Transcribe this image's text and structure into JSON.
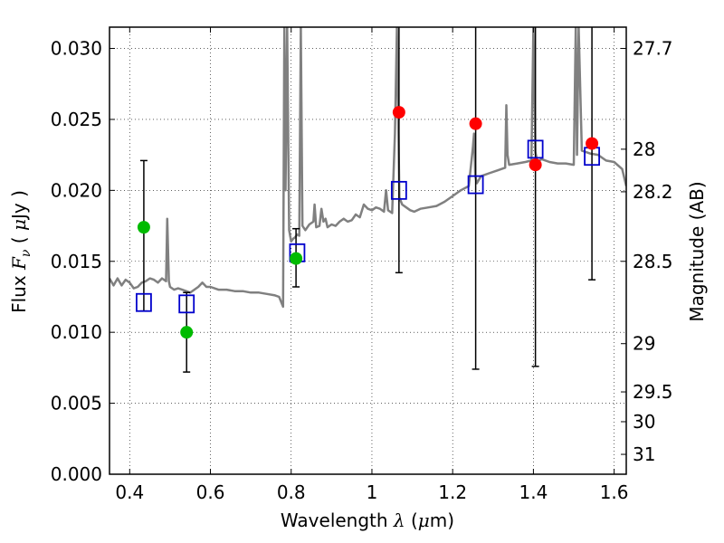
{
  "chart_data": {
    "type": "scatter",
    "title": "",
    "xlabel": {
      "prefix": "Wavelength  ",
      "symbol": "λ",
      "unit": " (",
      "unit_symbol": "μ",
      "unit_suffix": "m)"
    },
    "ylabel": {
      "prefix": "Flux  ",
      "symbol": "F",
      "subscript": "ν",
      "unit": "  ( ",
      "unit_symbol": "μ",
      "unit_suffix": "Jy )"
    },
    "y2label": "Magnitude (AB)",
    "xlim": [
      0.35,
      1.63
    ],
    "ylim": [
      0.0,
      0.0315
    ],
    "grid": true,
    "grid_style": "dotted",
    "x_ticks": [
      {
        "value": 0.4,
        "label": "0.4"
      },
      {
        "value": 0.6,
        "label": "0.6"
      },
      {
        "value": 0.8,
        "label": "0.8"
      },
      {
        "value": 1.0,
        "label": "1"
      },
      {
        "value": 1.2,
        "label": "1.2"
      },
      {
        "value": 1.4,
        "label": "1.4"
      },
      {
        "value": 1.6,
        "label": "1.6"
      }
    ],
    "y_ticks": [
      {
        "value": 0.0,
        "label": "0.000"
      },
      {
        "value": 0.005,
        "label": "0.005"
      },
      {
        "value": 0.01,
        "label": "0.010"
      },
      {
        "value": 0.015,
        "label": "0.015"
      },
      {
        "value": 0.02,
        "label": "0.020"
      },
      {
        "value": 0.025,
        "label": "0.025"
      },
      {
        "value": 0.03,
        "label": "0.030"
      }
    ],
    "y2_ticks": [
      {
        "flux": 0.03,
        "label": "27.7"
      },
      {
        "flux": 0.0229,
        "label": "28"
      },
      {
        "flux": 0.0199,
        "label": "28.2"
      },
      {
        "flux": 0.015,
        "label": "28.5"
      },
      {
        "flux": 0.0092,
        "label": "29"
      },
      {
        "flux": 0.0058,
        "label": "29.5"
      },
      {
        "flux": 0.0037,
        "label": "30"
      },
      {
        "flux": 0.0014,
        "label": "31"
      }
    ],
    "colors": {
      "spectrum": "#808080",
      "green_points": "#00bb00",
      "red_points": "#ff0000",
      "model_squares": "#0000cc",
      "errorbars": "#000000"
    },
    "spectrum": {
      "name": "",
      "x": [
        0.35,
        0.36,
        0.37,
        0.38,
        0.39,
        0.4,
        0.41,
        0.42,
        0.43,
        0.44,
        0.45,
        0.46,
        0.47,
        0.48,
        0.49,
        0.493,
        0.497,
        0.5,
        0.51,
        0.52,
        0.53,
        0.54,
        0.55,
        0.56,
        0.57,
        0.58,
        0.59,
        0.6,
        0.62,
        0.64,
        0.66,
        0.68,
        0.7,
        0.72,
        0.74,
        0.76,
        0.77,
        0.78,
        0.783,
        0.786,
        0.79,
        0.795,
        0.8,
        0.805,
        0.81,
        0.815,
        0.82,
        0.824,
        0.828,
        0.835,
        0.845,
        0.855,
        0.858,
        0.862,
        0.87,
        0.875,
        0.88,
        0.885,
        0.89,
        0.9,
        0.91,
        0.92,
        0.93,
        0.94,
        0.95,
        0.96,
        0.97,
        0.98,
        0.99,
        1.0,
        1.01,
        1.02,
        1.03,
        1.035,
        1.04,
        1.05,
        1.057,
        1.062,
        1.068,
        1.075,
        1.085,
        1.095,
        1.105,
        1.12,
        1.14,
        1.16,
        1.18,
        1.2,
        1.22,
        1.24,
        1.25,
        1.253,
        1.256,
        1.26,
        1.27,
        1.29,
        1.31,
        1.33,
        1.333,
        1.336,
        1.34,
        1.36,
        1.38,
        1.395,
        1.4,
        1.405,
        1.41,
        1.42,
        1.44,
        1.46,
        1.48,
        1.5,
        1.505,
        1.508,
        1.512,
        1.52,
        1.54,
        1.56,
        1.58,
        1.6,
        1.62,
        1.63
      ],
      "y": [
        0.0138,
        0.0133,
        0.0138,
        0.0133,
        0.0137,
        0.0135,
        0.0131,
        0.0132,
        0.0135,
        0.0136,
        0.0138,
        0.0137,
        0.0135,
        0.0138,
        0.0136,
        0.018,
        0.0136,
        0.0132,
        0.013,
        0.0131,
        0.013,
        0.0129,
        0.0128,
        0.013,
        0.0132,
        0.0135,
        0.0132,
        0.0132,
        0.013,
        0.013,
        0.0129,
        0.0129,
        0.0128,
        0.0128,
        0.0127,
        0.0126,
        0.0125,
        0.0118,
        0.0315,
        0.02,
        0.0315,
        0.0172,
        0.0164,
        0.0166,
        0.0167,
        0.0169,
        0.0168,
        0.0315,
        0.0175,
        0.0172,
        0.0176,
        0.0178,
        0.019,
        0.0174,
        0.0175,
        0.0187,
        0.0178,
        0.018,
        0.0174,
        0.0176,
        0.0175,
        0.0178,
        0.018,
        0.0178,
        0.0179,
        0.0183,
        0.0181,
        0.019,
        0.0187,
        0.0186,
        0.0188,
        0.0187,
        0.0185,
        0.02,
        0.0186,
        0.0184,
        0.024,
        0.0315,
        0.0195,
        0.019,
        0.0188,
        0.0186,
        0.0185,
        0.0187,
        0.0188,
        0.0189,
        0.0192,
        0.0196,
        0.02,
        0.0203,
        0.023,
        0.024,
        0.021,
        0.0205,
        0.021,
        0.0212,
        0.0214,
        0.0216,
        0.026,
        0.0225,
        0.0218,
        0.0219,
        0.022,
        0.0221,
        0.0315,
        0.0227,
        0.022,
        0.0222,
        0.022,
        0.0219,
        0.0219,
        0.0218,
        0.0315,
        0.0225,
        0.0315,
        0.0228,
        0.0226,
        0.0225,
        0.0221,
        0.022,
        0.0215,
        0.0203
      ]
    },
    "green_points": [
      {
        "x": 0.435,
        "y": 0.0174
      },
      {
        "x": 0.541,
        "y": 0.01
      },
      {
        "x": 0.812,
        "y": 0.0152
      }
    ],
    "red_points": [
      {
        "x": 1.067,
        "y": 0.0255
      },
      {
        "x": 1.257,
        "y": 0.0247
      },
      {
        "x": 1.405,
        "y": 0.0218
      },
      {
        "x": 1.545,
        "y": 0.0233
      }
    ],
    "model_squares": [
      {
        "x": 0.435,
        "y": 0.0121
      },
      {
        "x": 0.541,
        "y": 0.012
      },
      {
        "x": 0.815,
        "y": 0.0156
      },
      {
        "x": 1.067,
        "y": 0.02
      },
      {
        "x": 1.257,
        "y": 0.0204
      },
      {
        "x": 1.405,
        "y": 0.0229
      },
      {
        "x": 1.545,
        "y": 0.0224
      }
    ],
    "errorbars": [
      {
        "x": 0.435,
        "low": 0.0115,
        "high": 0.0221
      },
      {
        "x": 0.541,
        "low": 0.0072,
        "high": 0.0128
      },
      {
        "x": 0.812,
        "low": 0.0132,
        "high": 0.0173
      },
      {
        "x": 1.067,
        "low": 0.0142,
        "high": 0.0315
      },
      {
        "x": 1.257,
        "low": 0.0074,
        "high": 0.0315
      },
      {
        "x": 1.405,
        "low": 0.0076,
        "high": 0.0315
      },
      {
        "x": 1.545,
        "low": 0.0137,
        "high": 0.0315
      }
    ]
  }
}
